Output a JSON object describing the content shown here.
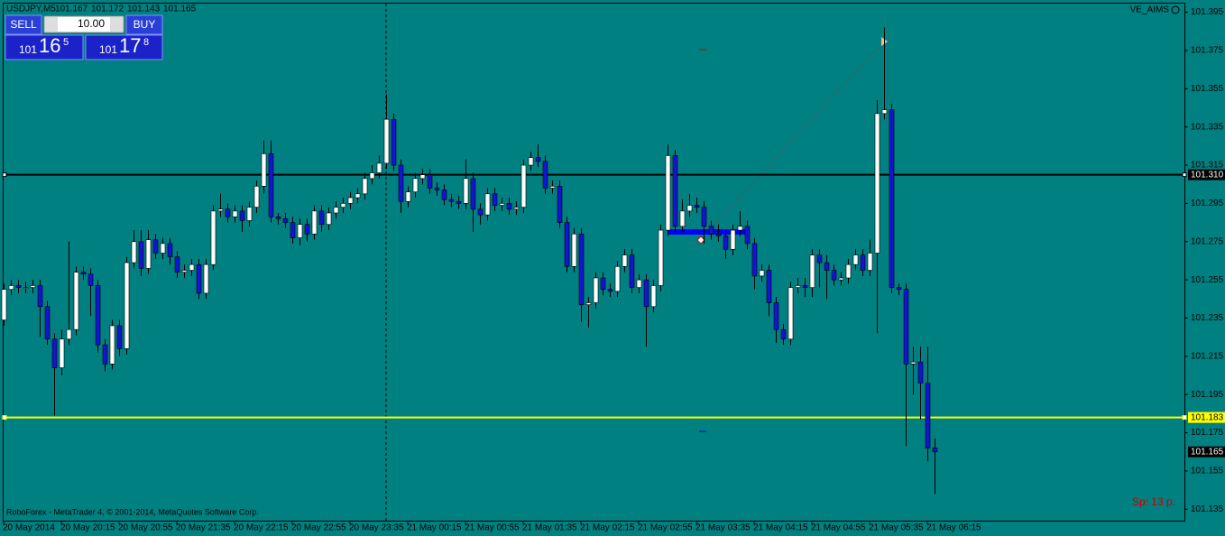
{
  "chart_data": {
    "type": "candlestick",
    "title": "USDJPY,M5",
    "indicator": "VE_AIMS",
    "footer": "RoboForex - MetaTrader 4, © 2001-2014, MetaQuotes Software Corp.",
    "spread": "Sp: 13 p.",
    "background": "#008080",
    "up_color": "#ffffff",
    "down_color": "#1414d2",
    "wick_color": "#000000",
    "ylim": [
      101.129,
      101.4
    ],
    "yticks": [
      101.395,
      101.375,
      101.355,
      101.335,
      101.315,
      101.295,
      101.275,
      101.255,
      101.235,
      101.215,
      101.195,
      101.175,
      101.155,
      101.135
    ],
    "hlines": [
      {
        "value": 101.31,
        "label": "101.310",
        "color": "#000000"
      },
      {
        "value": 101.183,
        "color": "#ffff00"
      }
    ],
    "categories": [
      "20 May 2014",
      null,
      null,
      null,
      null,
      null,
      null,
      null,
      "20 May 20:15",
      null,
      null,
      null,
      null,
      null,
      null,
      null,
      "20 May 20:55",
      null,
      null,
      null,
      null,
      null,
      null,
      null,
      "20 May 21:35",
      null,
      null,
      null,
      null,
      null,
      null,
      null,
      "20 May 22:15",
      null,
      null,
      null,
      null,
      null,
      null,
      null,
      "20 May 22:55",
      null,
      null,
      null,
      null,
      null,
      null,
      null,
      "20 May 23:35",
      null,
      null,
      null,
      null,
      null,
      null,
      null,
      "21 May 00:15",
      null,
      null,
      null,
      null,
      null,
      null,
      null,
      "21 May 00:55",
      null,
      null,
      null,
      null,
      null,
      null,
      null,
      "21 May 01:35",
      null,
      null,
      null,
      null,
      null,
      null,
      null,
      "21 May 02:15",
      null,
      null,
      null,
      null,
      null,
      null,
      null,
      "21 May 02:55",
      null,
      null,
      null,
      null,
      null,
      null,
      null,
      "21 May 03:35",
      null,
      null,
      null,
      null,
      null,
      null,
      null,
      "21 May 04:15",
      null,
      null,
      null,
      null,
      null,
      null,
      null,
      "21 May 04:55",
      null,
      null,
      null,
      null,
      null,
      null,
      null,
      "21 May 05:35",
      null,
      null,
      null,
      null,
      null,
      null,
      null,
      "21 May 06:15",
      null
    ],
    "open": [
      101.234,
      101.25,
      101.252,
      101.251,
      101.251,
      101.252,
      101.241,
      101.224,
      101.209,
      101.224,
      101.229,
      101.259,
      101.258,
      101.252,
      101.221,
      101.211,
      101.231,
      101.219,
      101.264,
      101.275,
      101.261,
      101.276,
      101.269,
      101.274,
      101.267,
      101.259,
      101.26,
      101.263,
      101.248,
      101.263,
      101.291,
      101.292,
      101.288,
      101.291,
      101.286,
      101.293,
      101.304,
      101.321,
      101.288,
      101.287,
      101.285,
      101.277,
      101.284,
      101.279,
      101.291,
      101.284,
      101.29,
      101.293,
      101.295,
      101.298,
      101.3,
      101.308,
      101.311,
      101.316,
      101.339,
      101.315,
      101.296,
      101.301,
      101.308,
      101.31,
      101.303,
      101.302,
      101.297,
      101.296,
      101.295,
      101.308,
      101.292,
      101.289,
      101.3,
      101.294,
      101.295,
      101.292,
      101.293,
      101.315,
      101.319,
      101.317,
      101.303,
      101.304,
      101.285,
      101.262,
      101.279,
      101.242,
      101.243,
      101.256,
      101.25,
      101.249,
      101.262,
      101.268,
      101.251,
      101.255,
      101.241,
      101.252,
      101.281,
      101.32,
      101.283,
      101.291,
      101.294,
      101.293,
      101.283,
      101.279,
      101.278,
      101.271,
      101.281,
      101.283,
      101.274,
      101.257,
      101.26,
      101.243,
      101.229,
      101.224,
      101.251,
      101.252,
      101.251,
      101.268,
      101.264,
      101.26,
      101.255,
      101.256,
      101.263,
      101.268,
      101.26,
      101.269,
      101.342,
      101.344,
      101.251,
      101.25,
      101.211,
      101.212,
      101.201,
      101.167
    ],
    "high": [
      101.253,
      101.255,
      101.255,
      101.254,
      101.255,
      101.255,
      101.244,
      101.227,
      101.229,
      101.275,
      101.262,
      101.262,
      101.261,
      101.255,
      101.224,
      101.234,
      101.234,
      101.267,
      101.281,
      101.281,
      101.281,
      101.279,
      101.277,
      101.277,
      101.27,
      101.263,
      101.266,
      101.266,
      101.266,
      101.294,
      101.3,
      101.295,
      101.294,
      101.294,
      101.296,
      101.307,
      101.328,
      101.328,
      101.29,
      101.29,
      101.288,
      101.287,
      101.287,
      101.294,
      101.294,
      101.293,
      101.296,
      101.298,
      101.301,
      101.303,
      101.311,
      101.315,
      101.32,
      101.352,
      101.342,
      101.318,
      101.304,
      101.311,
      101.313,
      101.313,
      101.306,
      101.305,
      101.3,
      101.299,
      101.318,
      101.311,
      101.295,
      101.303,
      101.303,
      101.298,
      101.298,
      101.296,
      101.318,
      101.322,
      101.326,
      101.32,
      101.307,
      101.307,
      101.288,
      101.282,
      101.282,
      101.246,
      101.259,
      101.259,
      101.253,
      101.265,
      101.271,
      101.271,
      101.258,
      101.258,
      101.255,
      101.284,
      101.326,
      101.323,
      101.297,
      101.3,
      101.298,
      101.296,
      101.286,
      101.284,
      101.281,
      101.284,
      101.291,
      101.286,
      101.277,
      101.263,
      101.263,
      101.246,
      101.232,
      101.254,
      101.256,
      101.256,
      101.271,
      101.271,
      101.268,
      101.263,
      101.259,
      101.266,
      101.271,
      101.271,
      101.276,
      101.349,
      101.387,
      101.347,
      101.253,
      101.253,
      101.22,
      101.22,
      101.22,
      101.172
    ],
    "low": [
      101.231,
      101.247,
      101.248,
      101.248,
      101.248,
      101.225,
      101.221,
      101.184,
      101.205,
      101.221,
      101.226,
      101.255,
      101.236,
      101.217,
      101.207,
      101.208,
      101.215,
      101.216,
      101.261,
      101.257,
      101.258,
      101.266,
      101.266,
      101.263,
      101.256,
      101.256,
      101.257,
      101.245,
      101.245,
      101.26,
      101.288,
      101.285,
      101.285,
      101.28,
      101.283,
      101.29,
      101.3,
      101.285,
      101.284,
      101.282,
      101.274,
      101.273,
      101.275,
      101.276,
      101.28,
      101.281,
      101.287,
      101.29,
      101.292,
      101.295,
      101.297,
      101.305,
      101.308,
      101.313,
      101.312,
      101.29,
      101.293,
      101.298,
      101.305,
      101.3,
      101.299,
      101.294,
      101.293,
      101.292,
      101.292,
      101.28,
      101.284,
      101.286,
      101.291,
      101.291,
      101.289,
      101.289,
      101.29,
      101.312,
      101.314,
      101.3,
      101.3,
      101.282,
      101.259,
      101.259,
      101.233,
      101.23,
      101.24,
      101.247,
      101.246,
      101.246,
      101.259,
      101.248,
      101.248,
      101.22,
      101.238,
      101.249,
      101.278,
      101.28,
      101.28,
      101.288,
      101.29,
      101.274,
      101.276,
      101.275,
      101.266,
      101.268,
      101.278,
      101.271,
      101.25,
      101.254,
      101.236,
      101.222,
      101.221,
      101.221,
      101.248,
      101.246,
      101.246,
      101.251,
      101.245,
      101.252,
      101.252,
      101.253,
      101.26,
      101.257,
      101.257,
      101.227,
      101.339,
      101.248,
      101.247,
      101.168,
      101.195,
      101.182,
      101.16,
      101.143
    ],
    "close": [
      101.25,
      101.252,
      101.251,
      101.251,
      101.252,
      101.241,
      101.224,
      101.209,
      101.224,
      101.229,
      101.259,
      101.258,
      101.252,
      101.221,
      101.211,
      101.231,
      101.219,
      101.264,
      101.275,
      101.261,
      101.276,
      101.269,
      101.274,
      101.267,
      101.259,
      101.26,
      101.263,
      101.248,
      101.263,
      101.291,
      101.292,
      101.288,
      101.291,
      101.286,
      101.293,
      101.304,
      101.321,
      101.288,
      101.287,
      101.285,
      101.277,
      101.284,
      101.279,
      101.291,
      101.284,
      101.29,
      101.293,
      101.295,
      101.298,
      101.3,
      101.308,
      101.311,
      101.316,
      101.339,
      101.315,
      101.296,
      101.301,
      101.308,
      101.31,
      101.303,
      101.302,
      101.297,
      101.296,
      101.295,
      101.308,
      101.292,
      101.289,
      101.3,
      101.294,
      101.295,
      101.292,
      101.293,
      101.315,
      101.319,
      101.317,
      101.303,
      101.304,
      101.285,
      101.262,
      101.279,
      101.242,
      101.243,
      101.256,
      101.25,
      101.249,
      101.262,
      101.268,
      101.251,
      101.255,
      101.241,
      101.252,
      101.281,
      101.32,
      101.283,
      101.291,
      101.294,
      101.293,
      101.283,
      101.279,
      101.278,
      101.271,
      101.281,
      101.283,
      101.274,
      101.257,
      101.26,
      101.243,
      101.229,
      101.224,
      101.251,
      101.252,
      101.251,
      101.268,
      101.264,
      101.26,
      101.255,
      101.256,
      101.263,
      101.268,
      101.26,
      101.269,
      101.342,
      101.344,
      101.251,
      101.25,
      101.211,
      101.212,
      101.201,
      101.167,
      101.165
    ]
  },
  "ui": {
    "sell": "SELL",
    "buy": "BUY",
    "lots": "10.00",
    "bid": {
      "big": "101",
      "mid": "16",
      "small": "5"
    },
    "ask": {
      "big": "101",
      "mid": "17",
      "small": "8"
    }
  }
}
